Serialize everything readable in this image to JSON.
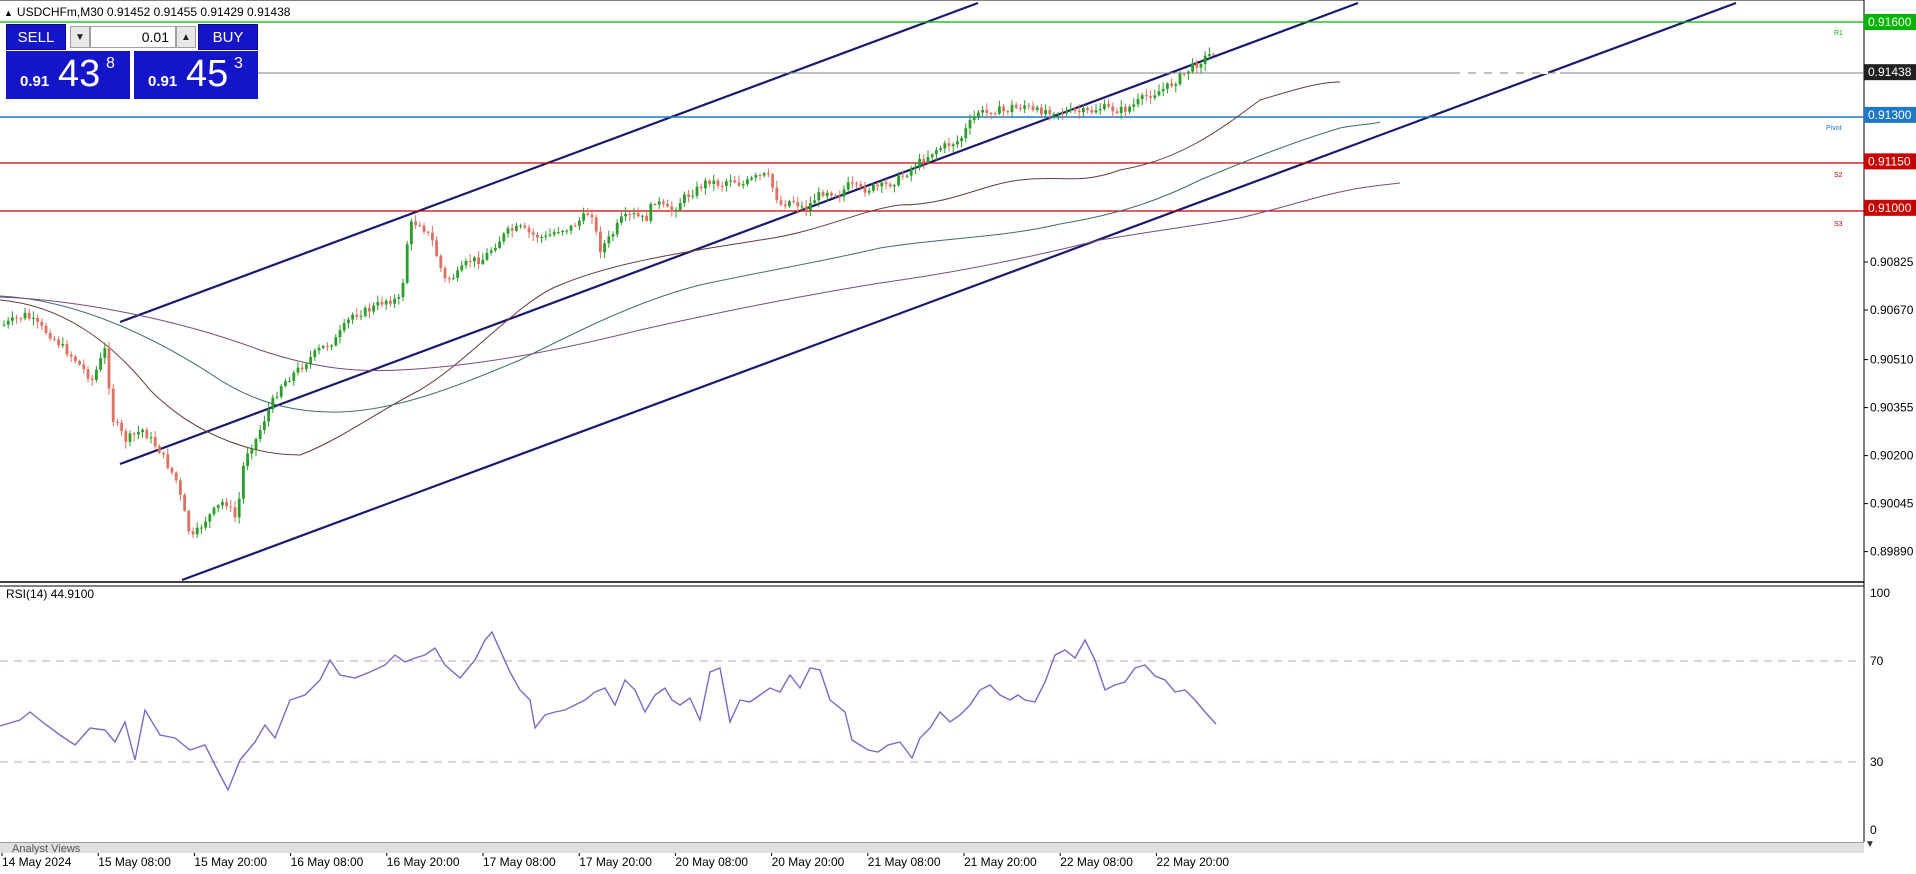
{
  "window": {
    "title": "USDCHFm,M30  0.91452 0.91455 0.91429 0.91438"
  },
  "trade_panel": {
    "sell_label": "SELL",
    "buy_label": "BUY",
    "lot_value": "0.01",
    "sell_price": {
      "prefix": "0.91",
      "big": "43",
      "sup": "8"
    },
    "buy_price": {
      "prefix": "0.91",
      "big": "45",
      "sup": "3"
    }
  },
  "price_axis": {
    "ticks": [
      "0.90825",
      "0.90670",
      "0.90510",
      "0.90355",
      "0.90200",
      "0.90045",
      "0.89890"
    ]
  },
  "levels": [
    {
      "price": "0.91600",
      "label": "R1",
      "color": "#00b400"
    },
    {
      "price": "0.91300",
      "label": "Pivot",
      "color": "#1e78c8"
    },
    {
      "price": "0.91150",
      "label": "S2",
      "color": "#c80000"
    },
    {
      "price": "0.91000",
      "label": "S3",
      "color": "#c80000"
    }
  ],
  "current_price": {
    "label": "0.91438",
    "color": "#202020"
  },
  "time_axis": {
    "labels": [
      "14 May 2024",
      "15 May 08:00",
      "15 May 20:00",
      "16 May 08:00",
      "16 May 20:00",
      "17 May 08:00",
      "17 May 20:00",
      "20 May 08:00",
      "20 May 20:00",
      "21 May 08:00",
      "21 May 20:00",
      "22 May 08:00",
      "22 May 20:00"
    ]
  },
  "rsi": {
    "label": "RSI(14) 44.9100",
    "levels": [
      "100",
      "70",
      "30",
      "0"
    ]
  },
  "watermark": "Analyst Views",
  "colors": {
    "bull": "#2a9d2a",
    "bear": "#e07060",
    "channel": "#1a1a6e",
    "rsi_line": "#7b68c8",
    "ma_fast": "#6b3a3a",
    "ma_mid": "#3f6f6f",
    "ma_slow": "#7a4a7a"
  },
  "chart_data": {
    "type": "candlestick",
    "symbol": "USDCHFm",
    "timeframe": "M30",
    "x": [
      "14 May 2024",
      "15 May 08:00",
      "15 May 20:00",
      "16 May 08:00",
      "16 May 20:00",
      "17 May 08:00",
      "17 May 20:00",
      "20 May 08:00",
      "20 May 20:00",
      "21 May 08:00",
      "21 May 20:00",
      "22 May 08:00",
      "22 May 20:00"
    ],
    "close_trend": [
      0.9065,
      0.9058,
      0.8992,
      0.906,
      0.908,
      0.909,
      0.9095,
      0.9098,
      0.9108,
      0.9095,
      0.911,
      0.9155,
      0.91438
    ],
    "ylim": [
      0.8985,
      0.9165
    ],
    "rsi_last": 44.91
  }
}
